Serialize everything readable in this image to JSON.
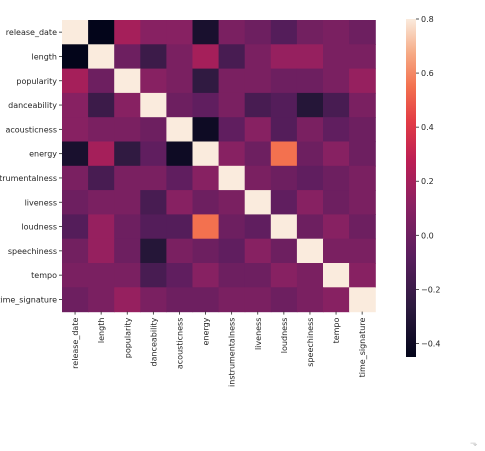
{
  "chart_data": {
    "type": "heatmap",
    "title": "",
    "xlabel": "",
    "ylabel": "",
    "labels": [
      "release_date",
      "length",
      "popularity",
      "danceability",
      "acousticness",
      "energy",
      "instrumentalness",
      "liveness",
      "loudness",
      "speechiness",
      "tempo",
      "time_signature"
    ],
    "matrix": [
      [
        0.8,
        -0.45,
        0.2,
        0.1,
        0.1,
        -0.35,
        0.05,
        0.0,
        -0.1,
        0.02,
        0.05,
        0.0
      ],
      [
        -0.45,
        0.8,
        0.0,
        -0.2,
        0.05,
        0.2,
        -0.15,
        0.05,
        0.15,
        0.15,
        0.05,
        0.05
      ],
      [
        0.2,
        0.0,
        0.8,
        0.1,
        0.05,
        -0.25,
        0.05,
        0.05,
        0.0,
        0.0,
        0.05,
        0.15
      ],
      [
        0.1,
        -0.2,
        0.1,
        0.8,
        0.0,
        -0.05,
        0.05,
        -0.15,
        -0.1,
        -0.3,
        -0.15,
        0.05
      ],
      [
        0.1,
        0.05,
        0.05,
        0.0,
        0.8,
        -0.4,
        -0.05,
        0.1,
        -0.1,
        0.05,
        -0.05,
        0.0
      ],
      [
        -0.35,
        0.2,
        -0.25,
        -0.05,
        -0.4,
        0.8,
        0.1,
        0.0,
        0.55,
        0.0,
        0.1,
        0.0
      ],
      [
        0.05,
        -0.15,
        0.05,
        0.05,
        -0.05,
        0.1,
        0.8,
        0.05,
        0.0,
        -0.05,
        0.0,
        0.05
      ],
      [
        0.0,
        0.05,
        0.05,
        -0.15,
        0.1,
        0.0,
        0.05,
        0.8,
        -0.05,
        0.1,
        0.0,
        0.05
      ],
      [
        -0.1,
        0.15,
        0.0,
        -0.1,
        -0.1,
        0.55,
        0.0,
        -0.05,
        0.8,
        0.0,
        0.1,
        0.0
      ],
      [
        0.02,
        0.15,
        0.0,
        -0.3,
        0.05,
        0.0,
        -0.05,
        0.1,
        0.0,
        0.8,
        0.05,
        0.05
      ],
      [
        0.05,
        0.05,
        0.05,
        -0.15,
        -0.05,
        0.1,
        0.0,
        0.0,
        0.1,
        0.05,
        0.8,
        0.1
      ],
      [
        0.0,
        0.05,
        0.15,
        0.05,
        0.0,
        0.0,
        0.05,
        0.05,
        0.0,
        0.05,
        0.1,
        0.8
      ]
    ],
    "colorbar": {
      "min": -0.45,
      "max": 0.8,
      "ticks": [
        0.8,
        0.6,
        0.4,
        0.2,
        0.0,
        -0.2,
        -0.4
      ],
      "tick_labels": [
        "0.8",
        "0.6",
        "0.4",
        "0.2",
        "0.0",
        "−0.2",
        "−0.4"
      ],
      "colormap": "rocket",
      "position": "right"
    }
  },
  "ui": {
    "corner_mark": "⬎"
  }
}
